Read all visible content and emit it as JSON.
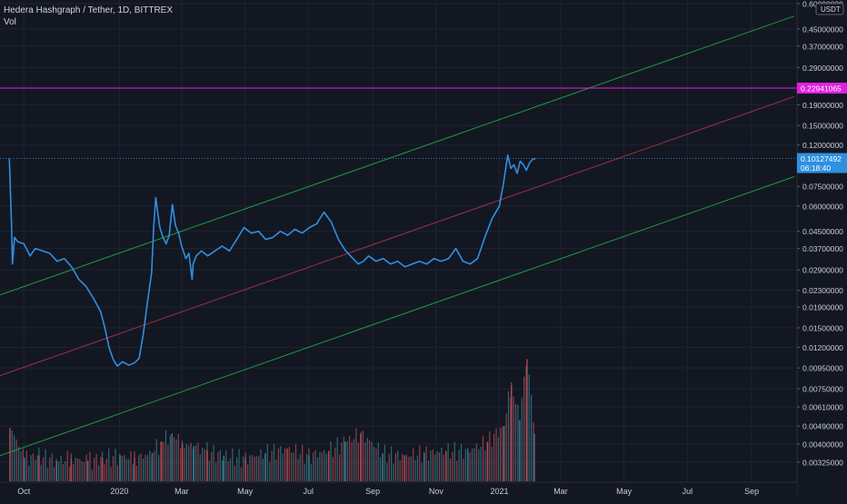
{
  "header": {
    "symbol_line": "Hedera Hashgraph / Tether, 1D, BITTREX",
    "vol_label": "Vol"
  },
  "price_axis": {
    "currency": "USDT",
    "tick_labels": [
      "0.60000000",
      "0.45000000",
      "0.37000000",
      "0.29000000",
      "0.19000000",
      "0.15000000",
      "0.12000000",
      "0.07500000",
      "0.06000000",
      "0.04500000",
      "0.03700000",
      "0.02900000",
      "0.02300000",
      "0.01900000",
      "0.01500000",
      "0.01200000",
      "0.00950000",
      "0.00750000",
      "0.00610000",
      "0.00490000",
      "0.00400000",
      "0.00325000"
    ],
    "scale": "log"
  },
  "markers": {
    "horizontal_line_label": "0.22941065",
    "last_price_label": "0.10127492",
    "countdown_label": "06:18:40"
  },
  "time_axis": {
    "labels": [
      "Oct",
      "2020",
      "Mar",
      "May",
      "Jul",
      "Sep",
      "Nov",
      "2021",
      "Mar",
      "May",
      "Jul",
      "Sep"
    ]
  },
  "colors": {
    "background": "#131722",
    "grid": "#1e2433",
    "price_line": "#2f8fe0",
    "channel_outer": "#1f9a3c",
    "channel_mid": "#a03048",
    "horizontal_line": "#e020e0",
    "volume_up": "#3a7a8a",
    "volume_down": "#b04a55",
    "axis_text": "#c8ccd6"
  },
  "chart_data": {
    "type": "line",
    "title": "Hedera Hashgraph / Tether, 1D, BITTREX",
    "xlabel": "",
    "ylabel": "",
    "yscale": "log",
    "ylim": [
      0.0029,
      0.6
    ],
    "xlim": [
      "2019-09-08",
      "2021-10-12"
    ],
    "series": [
      {
        "x": [
          "2019-09-17",
          "2019-09-18",
          "2019-09-19",
          "2019-09-20",
          "2019-09-22",
          "2019-09-25",
          "2019-10-01",
          "2019-10-07",
          "2019-10-12",
          "2019-10-19",
          "2019-10-26",
          "2019-11-02",
          "2019-11-09",
          "2019-11-16",
          "2019-11-23",
          "2019-11-30",
          "2019-12-07",
          "2019-12-14",
          "2019-12-18",
          "2019-12-22",
          "2019-12-26",
          "2019-12-30",
          "2020-01-04",
          "2020-01-10",
          "2020-01-16",
          "2020-01-20",
          "2020-01-24",
          "2020-01-28",
          "2020-02-01",
          "2020-02-03",
          "2020-02-05",
          "2020-02-07",
          "2020-02-09",
          "2020-02-12",
          "2020-02-15",
          "2020-02-18",
          "2020-02-21",
          "2020-02-24",
          "2020-02-27",
          "2020-03-01",
          "2020-03-05",
          "2020-03-08",
          "2020-03-11",
          "2020-03-12",
          "2020-03-15",
          "2020-03-20",
          "2020-03-26",
          "2020-04-02",
          "2020-04-09",
          "2020-04-16",
          "2020-04-23",
          "2020-04-30",
          "2020-05-07",
          "2020-05-14",
          "2020-05-21",
          "2020-05-28",
          "2020-06-04",
          "2020-06-11",
          "2020-06-18",
          "2020-06-25",
          "2020-07-02",
          "2020-07-09",
          "2020-07-16",
          "2020-07-23",
          "2020-07-30",
          "2020-08-06",
          "2020-08-13",
          "2020-08-18",
          "2020-08-23",
          "2020-08-28",
          "2020-09-04",
          "2020-09-11",
          "2020-09-18",
          "2020-09-25",
          "2020-10-02",
          "2020-10-09",
          "2020-10-16",
          "2020-10-23",
          "2020-10-30",
          "2020-11-06",
          "2020-11-13",
          "2020-11-20",
          "2020-11-27",
          "2020-12-04",
          "2020-12-11",
          "2020-12-18",
          "2020-12-25",
          "2021-01-01",
          "2021-01-05",
          "2021-01-09",
          "2021-01-12",
          "2021-01-15",
          "2021-01-18",
          "2021-01-21",
          "2021-01-24",
          "2021-01-27",
          "2021-01-30",
          "2021-02-02",
          "2021-02-05"
        ],
        "values": [
          0.103,
          0.072,
          0.05,
          0.031,
          0.042,
          0.04,
          0.039,
          0.034,
          0.037,
          0.036,
          0.035,
          0.032,
          0.033,
          0.03,
          0.026,
          0.024,
          0.021,
          0.018,
          0.015,
          0.012,
          0.0105,
          0.0097,
          0.0102,
          0.0098,
          0.0101,
          0.0106,
          0.014,
          0.02,
          0.028,
          0.047,
          0.066,
          0.055,
          0.047,
          0.042,
          0.039,
          0.043,
          0.061,
          0.048,
          0.044,
          0.038,
          0.033,
          0.035,
          0.026,
          0.031,
          0.034,
          0.036,
          0.034,
          0.036,
          0.038,
          0.036,
          0.041,
          0.047,
          0.044,
          0.045,
          0.041,
          0.042,
          0.045,
          0.043,
          0.046,
          0.044,
          0.047,
          0.049,
          0.056,
          0.05,
          0.041,
          0.036,
          0.033,
          0.031,
          0.032,
          0.034,
          0.032,
          0.033,
          0.031,
          0.032,
          0.03,
          0.031,
          0.032,
          0.031,
          0.033,
          0.032,
          0.033,
          0.037,
          0.032,
          0.031,
          0.033,
          0.042,
          0.052,
          0.06,
          0.078,
          0.107,
          0.092,
          0.096,
          0.087,
          0.1,
          0.096,
          0.09,
          0.098,
          0.102,
          0.103
        ]
      }
    ],
    "volume": {
      "x": [
        "2019-09-17",
        "2019-10-01",
        "2019-10-15",
        "2019-11-01",
        "2019-11-15",
        "2019-12-01",
        "2019-12-15",
        "2020-01-01",
        "2020-01-15",
        "2020-02-01",
        "2020-02-10",
        "2020-02-20",
        "2020-03-01",
        "2020-03-12",
        "2020-03-25",
        "2020-04-10",
        "2020-05-01",
        "2020-05-20",
        "2020-06-10",
        "2020-07-01",
        "2020-07-20",
        "2020-08-05",
        "2020-08-20",
        "2020-09-10",
        "2020-10-01",
        "2020-10-20",
        "2020-11-10",
        "2020-12-01",
        "2020-12-20",
        "2021-01-05",
        "2021-01-12",
        "2021-01-20",
        "2021-01-27",
        "2021-02-03"
      ],
      "values": [
        0.0048,
        0.0034,
        0.0035,
        0.0033,
        0.0034,
        0.0033,
        0.0034,
        0.0035,
        0.0034,
        0.0036,
        0.0041,
        0.0045,
        0.004,
        0.0039,
        0.0037,
        0.0035,
        0.0034,
        0.0036,
        0.0038,
        0.0035,
        0.0037,
        0.0041,
        0.0045,
        0.0036,
        0.0035,
        0.0036,
        0.0037,
        0.0037,
        0.0041,
        0.0049,
        0.0078,
        0.0052,
        0.0105,
        0.0045
      ]
    },
    "channel": {
      "upper": {
        "x": [
          "2019-09-08",
          "2021-09-12"
        ],
        "values": [
          0.0218,
          0.46
        ]
      },
      "middle": {
        "x": [
          "2019-09-08",
          "2021-09-12"
        ],
        "values": [
          0.0087,
          0.184
        ]
      },
      "lower": {
        "x": [
          "2019-09-08",
          "2021-09-12"
        ],
        "values": [
          0.0035,
          0.074
        ]
      }
    },
    "hline": 0.22941065,
    "grid": true
  }
}
